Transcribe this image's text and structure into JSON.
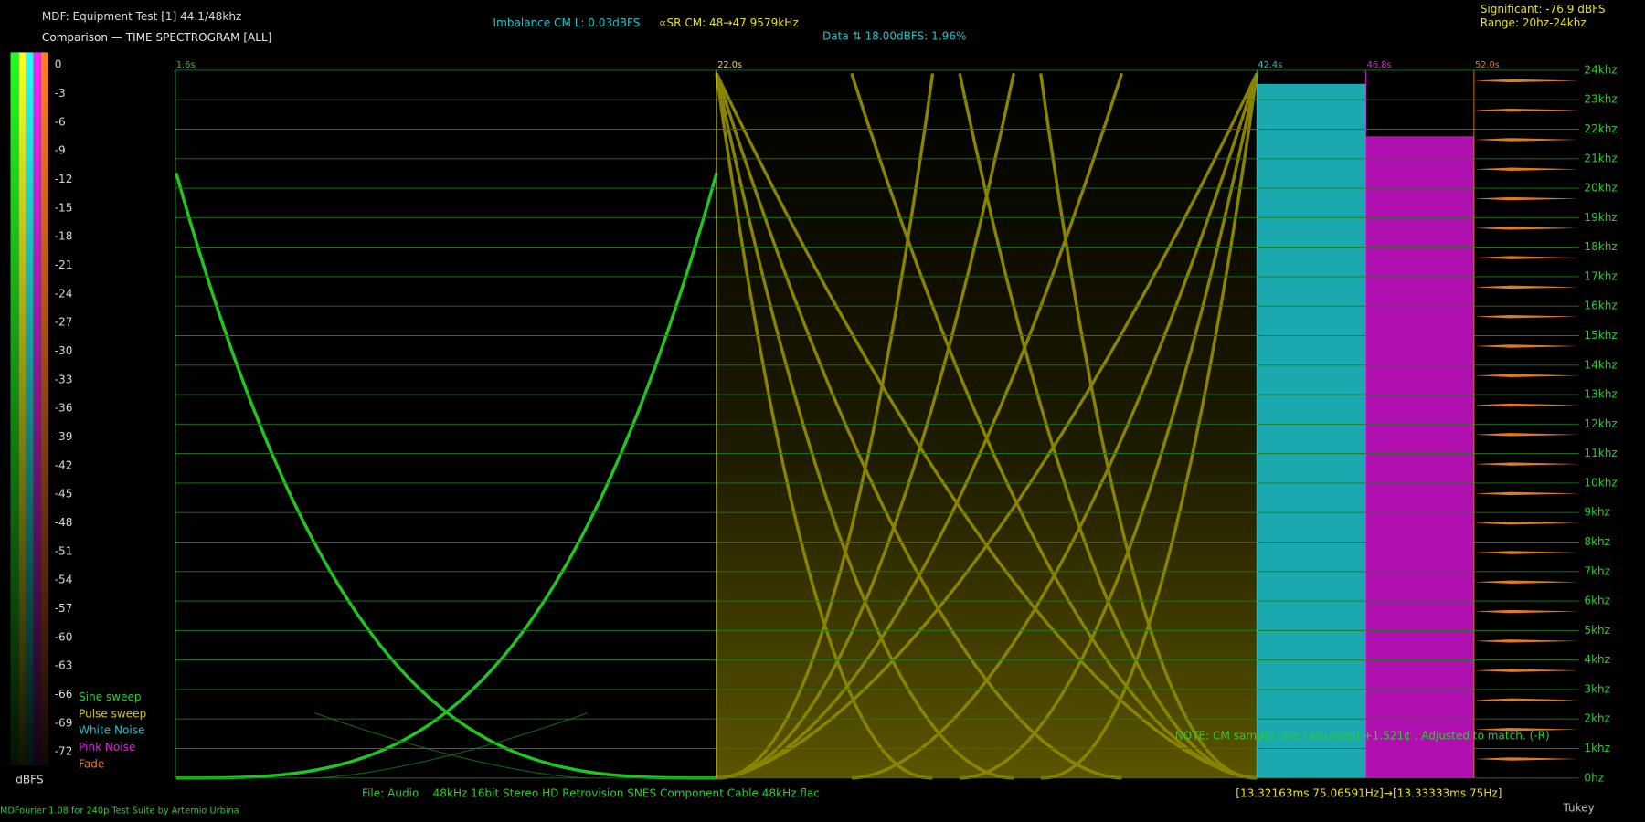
{
  "header": {
    "title": "MDF: Equipment Test [1] 44.1/48khz",
    "subtitle": "Comparison — TIME SPECTROGRAM [ALL]"
  },
  "stats": {
    "imbalance": "Imbalance CM L: 0.03dBFS",
    "sample_rate": "∝SR CM: 48→47.9579kHz",
    "data": "Data ⇅ 18.00dBFS: 1.96%",
    "significant": "Significant: -76.9 dBFS",
    "range": "Range: 20hz-24khz"
  },
  "scale": {
    "labels": [
      0,
      -3,
      -6,
      -9,
      -12,
      -15,
      -18,
      -21,
      -24,
      -27,
      -30,
      -33,
      -36,
      -39,
      -42,
      -45,
      -48,
      -51,
      -54,
      -57,
      -60,
      -63,
      -66,
      -69,
      -72
    ],
    "unit": "dBFS"
  },
  "legend": [
    {
      "name": "Sine sweep",
      "color": "#2ecc2e"
    },
    {
      "name": "Pulse sweep",
      "color": "#d6c81e"
    },
    {
      "name": "White Noise",
      "color": "#1fc3c8"
    },
    {
      "name": "Pink Noise",
      "color": "#e020e0"
    },
    {
      "name": "Fade",
      "color": "#e07a1e"
    }
  ],
  "time_markers": [
    {
      "label": "1.6s",
      "color": "#2ecc2e"
    },
    {
      "label": "22.0s",
      "color": "#e6e020"
    },
    {
      "label": "42.4s",
      "color": "#1fc3c8"
    },
    {
      "label": "46.8s",
      "color": "#e020e0"
    },
    {
      "label": "52.0s",
      "color": "#e07a1e"
    }
  ],
  "frequency_labels": [
    "24khz",
    "23khz",
    "22khz",
    "21khz",
    "20khz",
    "19khz",
    "18khz",
    "17khz",
    "16khz",
    "15khz",
    "14khz",
    "13khz",
    "12khz",
    "11khz",
    "10khz",
    "9khz",
    "8khz",
    "7khz",
    "6khz",
    "5khz",
    "4khz",
    "3khz",
    "2khz",
    "1khz",
    "0hz"
  ],
  "note": "NOTE: CM sample rate calculated +1.521¢ . Adjusted to match. (-R)",
  "footer": {
    "file": "File: Audio    48kHz 16bit Stereo HD Retrovision SNES Component Cable 48kHz.flac",
    "timing": "[13.32163ms 75.06591Hz]→[13.33333ms 75Hz]",
    "credit": "MDFourier 1.08 for 240p Test Suite by Artemio Urbina",
    "window": "Tukey"
  }
}
